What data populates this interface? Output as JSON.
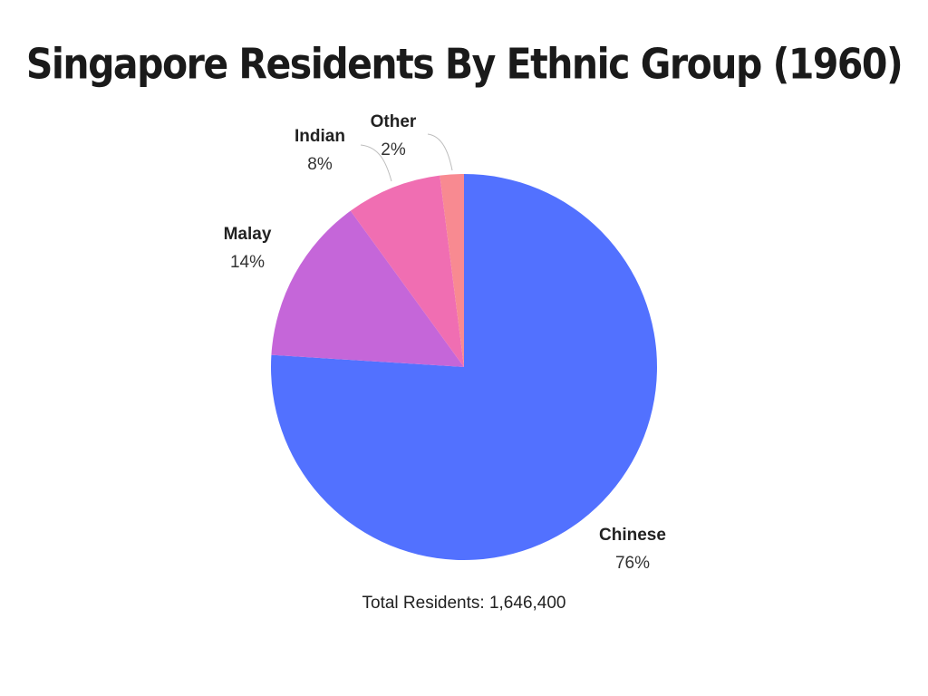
{
  "chart_data": {
    "type": "pie",
    "title": "Singapore Residents By Ethnic Group (1960)",
    "slices": [
      {
        "name": "Chinese",
        "value": 76,
        "label": "76%",
        "color": "#5271ff"
      },
      {
        "name": "Malay",
        "value": 14,
        "label": "14%",
        "color": "#c566d9"
      },
      {
        "name": "Indian",
        "value": 8,
        "label": "8%",
        "color": "#f06eb2"
      },
      {
        "name": "Other",
        "value": 2,
        "label": "2%",
        "color": "#f88a91"
      }
    ],
    "start_angle": "12 o'clock",
    "direction": "clockwise",
    "footer": "Total Residents: 1,646,400"
  }
}
